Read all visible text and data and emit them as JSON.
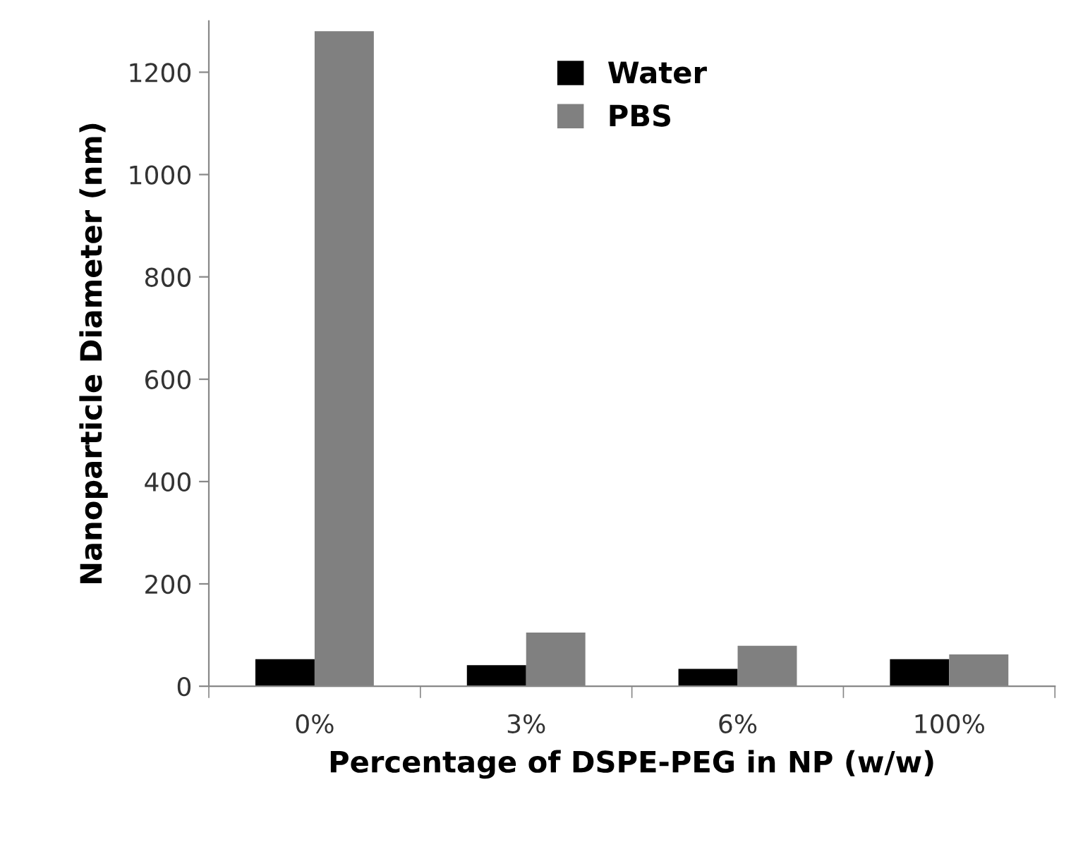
{
  "chart_data": {
    "type": "bar",
    "xlabel": "Percentage of DSPE-PEG in NP (w/w)",
    "ylabel": "Nanoparticle Diameter (nm)",
    "categories": [
      "0%",
      "3%",
      "6%",
      "100%"
    ],
    "series": [
      {
        "name": "Water",
        "color": "#000000",
        "values": [
          53,
          41,
          34,
          53
        ]
      },
      {
        "name": "PBS",
        "color": "#808080",
        "values": [
          1280,
          105,
          79,
          62
        ]
      }
    ],
    "ylim": [
      0,
      1300
    ],
    "yticks": [
      0,
      200,
      400,
      600,
      800,
      1000,
      1200
    ],
    "grid": false,
    "legend": "top right"
  }
}
